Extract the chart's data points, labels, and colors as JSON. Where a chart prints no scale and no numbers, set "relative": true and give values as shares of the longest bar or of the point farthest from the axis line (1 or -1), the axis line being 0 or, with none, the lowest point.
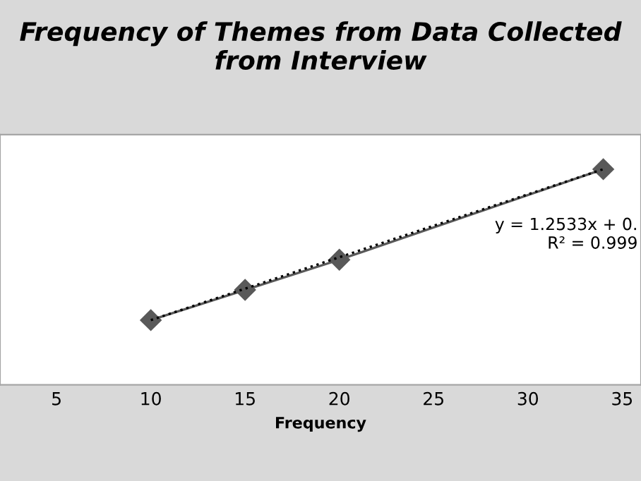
{
  "chart_data": {
    "type": "line",
    "title": "Frequency of Themes from Data Collected\nfrom Interview",
    "xlabel": "Frequency",
    "relative": true,
    "tick_labels": "x",
    "xlim": [
      2,
      36
    ],
    "xticks": [
      5,
      10,
      15,
      20,
      25,
      30,
      35
    ],
    "marker": "diamond",
    "grid": false,
    "legend": false,
    "series": [
      {
        "color": "#595959",
        "x": [
          10,
          15,
          20,
          34
        ],
        "values": [
          0.3,
          0.44,
          0.58,
          1.0
        ]
      },
      {
        "color": "#000000",
        "line_style": "dotted",
        "marker": "none",
        "x": [
          10,
          34
        ],
        "values": [
          0.3,
          1.0
        ]
      }
    ],
    "annotations": [
      "y = 1.2533x + 0.\nR² = 0.999"
    ]
  }
}
